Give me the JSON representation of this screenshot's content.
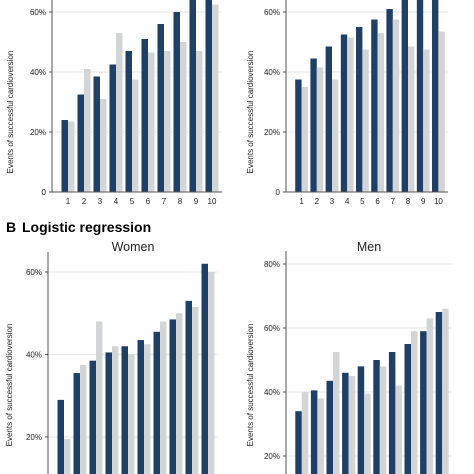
{
  "colors": {
    "predicted": "#1f3f66",
    "observed": "#d3d4d6",
    "grid": "#e6e6e6",
    "axis": "#555555"
  },
  "sections": [
    {
      "letter": "B",
      "title": "Logistic regression"
    }
  ],
  "chart_data": [
    {
      "type": "bar",
      "panel": "top-left",
      "title": "",
      "ylabel": "Events of successful cardioversion",
      "xlabel": "",
      "categories": [
        "1",
        "2",
        "3",
        "4",
        "5",
        "6",
        "7",
        "8",
        "9",
        "10"
      ],
      "series": [
        {
          "values": [
            24,
            32.5,
            38.5,
            42.5,
            47,
            51,
            56,
            60,
            65,
            67
          ]
        },
        {
          "values": [
            23.5,
            41,
            31,
            53,
            37.5,
            46.5,
            47,
            50,
            47,
            62.5
          ]
        }
      ],
      "ylim": [
        0,
        60
      ],
      "yticks": [
        "0",
        "20%",
        "40%",
        "60%"
      ],
      "grid": true,
      "legend": "none"
    },
    {
      "type": "bar",
      "panel": "top-right",
      "title": "",
      "ylabel": "Events of successful cardioversion",
      "xlabel": "",
      "categories": [
        "1",
        "2",
        "3",
        "4",
        "5",
        "6",
        "7",
        "8",
        "9",
        "10"
      ],
      "series": [
        {
          "values": [
            37.5,
            44.5,
            48.5,
            52.5,
            55,
            57.5,
            61,
            65,
            66,
            67
          ]
        },
        {
          "values": [
            35,
            41.5,
            37.5,
            51.5,
            47.5,
            53,
            57.5,
            48.5,
            47.5,
            53.5
          ]
        }
      ],
      "ylim": [
        0,
        60
      ],
      "yticks": [
        "0",
        "20%",
        "40%",
        "60%"
      ],
      "grid": true,
      "legend": "none"
    },
    {
      "type": "bar",
      "panel": "bottom-left",
      "title": "Women",
      "ylabel": "Events of successful cardioversion",
      "xlabel": "",
      "categories": [
        "1",
        "2",
        "3",
        "4",
        "5",
        "6",
        "7",
        "8",
        "9",
        "10"
      ],
      "series": [
        {
          "values": [
            29,
            35.5,
            38.5,
            40.5,
            42,
            43.5,
            45.5,
            48.5,
            53,
            62
          ]
        },
        {
          "values": [
            19.5,
            37.5,
            48,
            42,
            40,
            42.5,
            48,
            50,
            51.5,
            60
          ]
        }
      ],
      "ylim": [
        10,
        64
      ],
      "yticks": [
        "20%",
        "40%",
        "60%"
      ],
      "grid": true,
      "legend": "none"
    },
    {
      "type": "bar",
      "panel": "bottom-right",
      "title": "Men",
      "ylabel": "Events of successful cardioversion",
      "xlabel": "",
      "categories": [
        "1",
        "2",
        "3",
        "4",
        "5",
        "6",
        "7",
        "8",
        "9",
        "10"
      ],
      "series": [
        {
          "values": [
            34,
            40.5,
            43.5,
            46,
            48,
            50,
            52.5,
            55,
            59,
            65
          ]
        },
        {
          "values": [
            40,
            38,
            52.5,
            45,
            39.5,
            48,
            42,
            59,
            63,
            66
          ]
        }
      ],
      "ylim": [
        15,
        82
      ],
      "yticks": [
        "20%",
        "40%",
        "60%",
        "80%"
      ],
      "grid": true,
      "legend": "none"
    }
  ]
}
